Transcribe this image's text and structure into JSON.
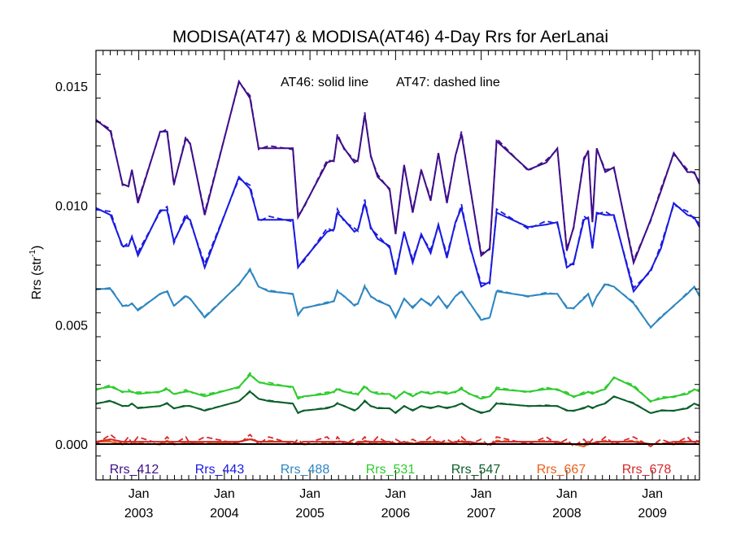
{
  "chart_data": {
    "type": "line",
    "title": "MODISA(AT47) & MODISA(AT46) 4-Day Rrs for AerLanai",
    "ylabel_main": "Rrs (str",
    "ylabel_sup": "-1",
    "ylabel_close": ")",
    "annotation_solid": "AT46: solid line",
    "annotation_dashed": "AT47: dashed line",
    "ylim": [
      -0.0015,
      0.0165
    ],
    "yticks": [
      0.0,
      0.005,
      0.01,
      0.015
    ],
    "ytick_labels": [
      "0.000",
      "0.005",
      "0.010",
      "0.015"
    ],
    "xlim": [
      2002.5,
      2009.55
    ],
    "xticks": [
      2003,
      2004,
      2005,
      2006,
      2007,
      2008,
      2009
    ],
    "xtick_month_labels": [
      "Jan",
      "Jan",
      "Jan",
      "Jan",
      "Jan",
      "Jan",
      "Jan"
    ],
    "xtick_year_labels": [
      "2003",
      "2004",
      "2005",
      "2006",
      "2007",
      "2008",
      "2009"
    ],
    "zero_line": true,
    "grid": false,
    "legend_position": "bottom",
    "x": [
      2002.5,
      2002.67,
      2002.81,
      2002.88,
      2002.92,
      2002.99,
      2003.25,
      2003.33,
      2003.41,
      2003.55,
      2003.6,
      2003.77,
      2004.17,
      2004.3,
      2004.4,
      2004.52,
      2004.8,
      2004.86,
      2004.92,
      2005.2,
      2005.28,
      2005.32,
      2005.4,
      2005.52,
      2005.56,
      2005.64,
      2005.71,
      2005.79,
      2005.93,
      2006.0,
      2006.1,
      2006.2,
      2006.3,
      2006.41,
      2006.5,
      2006.6,
      2006.7,
      2006.77,
      2006.87,
      2007.0,
      2007.1,
      2007.18,
      2007.55,
      2007.76,
      2007.89,
      2008.0,
      2008.08,
      2008.2,
      2008.25,
      2008.3,
      2008.35,
      2008.45,
      2008.55,
      2008.78,
      2008.98,
      2009.1,
      2009.25,
      2009.41,
      2009.49,
      2009.55
    ],
    "series": [
      {
        "name": "Rrs_412",
        "color": "#3f0e8a",
        "values": [
          0.0136,
          0.0131,
          0.0109,
          0.0108,
          0.0115,
          0.0101,
          0.0131,
          0.0131,
          0.0109,
          0.0128,
          0.0126,
          0.0096,
          0.0152,
          0.0145,
          0.0124,
          0.0124,
          0.0124,
          0.0095,
          0.0099,
          0.0118,
          0.0119,
          0.0129,
          0.0124,
          0.0118,
          0.0119,
          0.0138,
          0.0121,
          0.0112,
          0.0107,
          0.0088,
          0.0117,
          0.0097,
          0.0115,
          0.0102,
          0.0122,
          0.0101,
          0.0121,
          0.013,
          0.0108,
          0.0079,
          0.0082,
          0.0127,
          0.0115,
          0.0118,
          0.0124,
          0.0081,
          0.0091,
          0.0119,
          0.0123,
          0.0093,
          0.0124,
          0.0114,
          0.0116,
          0.0076,
          0.0094,
          0.0106,
          0.0122,
          0.0114,
          0.0114,
          0.0109
        ]
      },
      {
        "name": "Rrs_443",
        "color": "#1a1ae0",
        "values": [
          0.0099,
          0.0096,
          0.0083,
          0.0083,
          0.0087,
          0.0079,
          0.0098,
          0.0098,
          0.0085,
          0.0095,
          0.0094,
          0.0074,
          0.0112,
          0.0107,
          0.0094,
          0.0094,
          0.0094,
          0.0074,
          0.0077,
          0.0089,
          0.009,
          0.0097,
          0.0094,
          0.0089,
          0.009,
          0.0101,
          0.0091,
          0.0086,
          0.0083,
          0.0071,
          0.0089,
          0.0076,
          0.0088,
          0.008,
          0.0092,
          0.0078,
          0.0093,
          0.0099,
          0.0083,
          0.0066,
          0.0068,
          0.0097,
          0.0091,
          0.0092,
          0.0093,
          0.0074,
          0.0076,
          0.0094,
          0.0095,
          0.0082,
          0.0097,
          0.0096,
          0.0096,
          0.0064,
          0.0073,
          0.0082,
          0.0101,
          0.0096,
          0.0095,
          0.0091
        ]
      },
      {
        "name": "Rrs_488",
        "color": "#2e86c1",
        "values": [
          0.0065,
          0.0065,
          0.0058,
          0.0058,
          0.0059,
          0.0056,
          0.0063,
          0.0064,
          0.0058,
          0.0062,
          0.0061,
          0.0053,
          0.0067,
          0.0073,
          0.0066,
          0.0064,
          0.0063,
          0.0054,
          0.0057,
          0.0059,
          0.006,
          0.0064,
          0.0062,
          0.0058,
          0.0059,
          0.0066,
          0.0062,
          0.006,
          0.0058,
          0.0053,
          0.0061,
          0.0057,
          0.0061,
          0.0058,
          0.0062,
          0.0057,
          0.0062,
          0.0064,
          0.0059,
          0.0052,
          0.0053,
          0.0064,
          0.0062,
          0.0063,
          0.0063,
          0.0057,
          0.0057,
          0.0061,
          0.0063,
          0.0058,
          0.0062,
          0.0067,
          0.0066,
          0.0059,
          0.0049,
          0.0053,
          0.0058,
          0.0063,
          0.0066,
          0.0062
        ]
      },
      {
        "name": "Rrs_531",
        "color": "#2ecc2e",
        "values": [
          0.0023,
          0.0024,
          0.0022,
          0.0022,
          0.0022,
          0.0021,
          0.0022,
          0.0023,
          0.0021,
          0.0022,
          0.0022,
          0.002,
          0.0024,
          0.0029,
          0.0026,
          0.0025,
          0.0024,
          0.0019,
          0.002,
          0.0021,
          0.0022,
          0.0023,
          0.0022,
          0.0021,
          0.0021,
          0.0024,
          0.0022,
          0.0021,
          0.0021,
          0.0019,
          0.0022,
          0.002,
          0.0022,
          0.0021,
          0.0022,
          0.0021,
          0.0022,
          0.0023,
          0.0021,
          0.0019,
          0.002,
          0.0023,
          0.0022,
          0.0023,
          0.0023,
          0.0021,
          0.002,
          0.0021,
          0.0022,
          0.0021,
          0.0022,
          0.0023,
          0.0028,
          0.0024,
          0.0018,
          0.0019,
          0.002,
          0.0021,
          0.0023,
          0.0022
        ]
      },
      {
        "name": "Rrs_547",
        "color": "#0b5e2a",
        "values": [
          0.0017,
          0.0018,
          0.0016,
          0.0016,
          0.0017,
          0.0015,
          0.0016,
          0.0017,
          0.0015,
          0.0016,
          0.0016,
          0.0014,
          0.0018,
          0.0022,
          0.0019,
          0.0018,
          0.0017,
          0.0013,
          0.0014,
          0.0015,
          0.0016,
          0.0017,
          0.0016,
          0.0014,
          0.0015,
          0.0018,
          0.0016,
          0.0015,
          0.0015,
          0.0013,
          0.0016,
          0.0014,
          0.0016,
          0.0015,
          0.0016,
          0.0015,
          0.0016,
          0.0017,
          0.0015,
          0.0013,
          0.0014,
          0.0017,
          0.0016,
          0.0016,
          0.0016,
          0.0014,
          0.0014,
          0.0015,
          0.0016,
          0.0015,
          0.0016,
          0.0017,
          0.002,
          0.0017,
          0.0013,
          0.0014,
          0.0014,
          0.0015,
          0.0017,
          0.0016
        ]
      },
      {
        "name": "Rrs_667",
        "color": "#e8601c",
        "values": [
          0.0001,
          0.0001,
          0.0,
          0.0001,
          0.0001,
          0.0,
          0.0,
          0.0001,
          0.0,
          0.0,
          0.0001,
          0.0,
          0.0001,
          0.0002,
          0.0001,
          0.0001,
          0.0001,
          0.0,
          0.0,
          0.0,
          0.0001,
          0.0001,
          0.0001,
          0.0,
          0.0,
          0.0001,
          0.0001,
          0.0,
          0.0001,
          0.0,
          0.0001,
          0.0,
          0.0001,
          0.0,
          0.0001,
          0.0,
          0.0001,
          0.0001,
          0.0,
          0.0,
          0.0,
          0.0001,
          0.0001,
          0.0001,
          0.0001,
          0.0,
          0.0,
          -0.0001,
          0.0,
          0.0,
          0.0001,
          0.0001,
          0.0001,
          0.0001,
          0.0,
          0.0,
          0.0,
          0.0001,
          0.0001,
          0.0001
        ]
      },
      {
        "name": "Rrs_678",
        "color": "#d62728",
        "values": [
          0.0001,
          0.0002,
          0.0001,
          0.0001,
          0.0001,
          0.0001,
          0.0001,
          0.0001,
          0.0001,
          0.0001,
          0.0001,
          0.0001,
          0.0001,
          0.0002,
          0.0001,
          0.0001,
          0.0001,
          0.0,
          0.0001,
          0.0001,
          0.0001,
          0.0001,
          0.0001,
          0.0,
          0.0001,
          0.0001,
          0.0001,
          0.0001,
          0.0001,
          0.0,
          0.0001,
          0.0,
          0.0001,
          0.0001,
          0.0001,
          0.0,
          0.0001,
          0.0001,
          0.0001,
          0.0,
          0.0,
          0.0001,
          0.0001,
          0.0001,
          0.0001,
          0.0,
          0.0,
          0.0,
          0.0001,
          0.0,
          0.0001,
          0.0001,
          0.0001,
          0.0001,
          0.0,
          0.0,
          0.0001,
          0.0001,
          0.0001,
          0.0001
        ]
      }
    ],
    "dashed_offsets": [
      0.0001,
      0.00015,
      5e-05,
      8e-05,
      3e-05,
      5e-05,
      0.0002
    ]
  }
}
